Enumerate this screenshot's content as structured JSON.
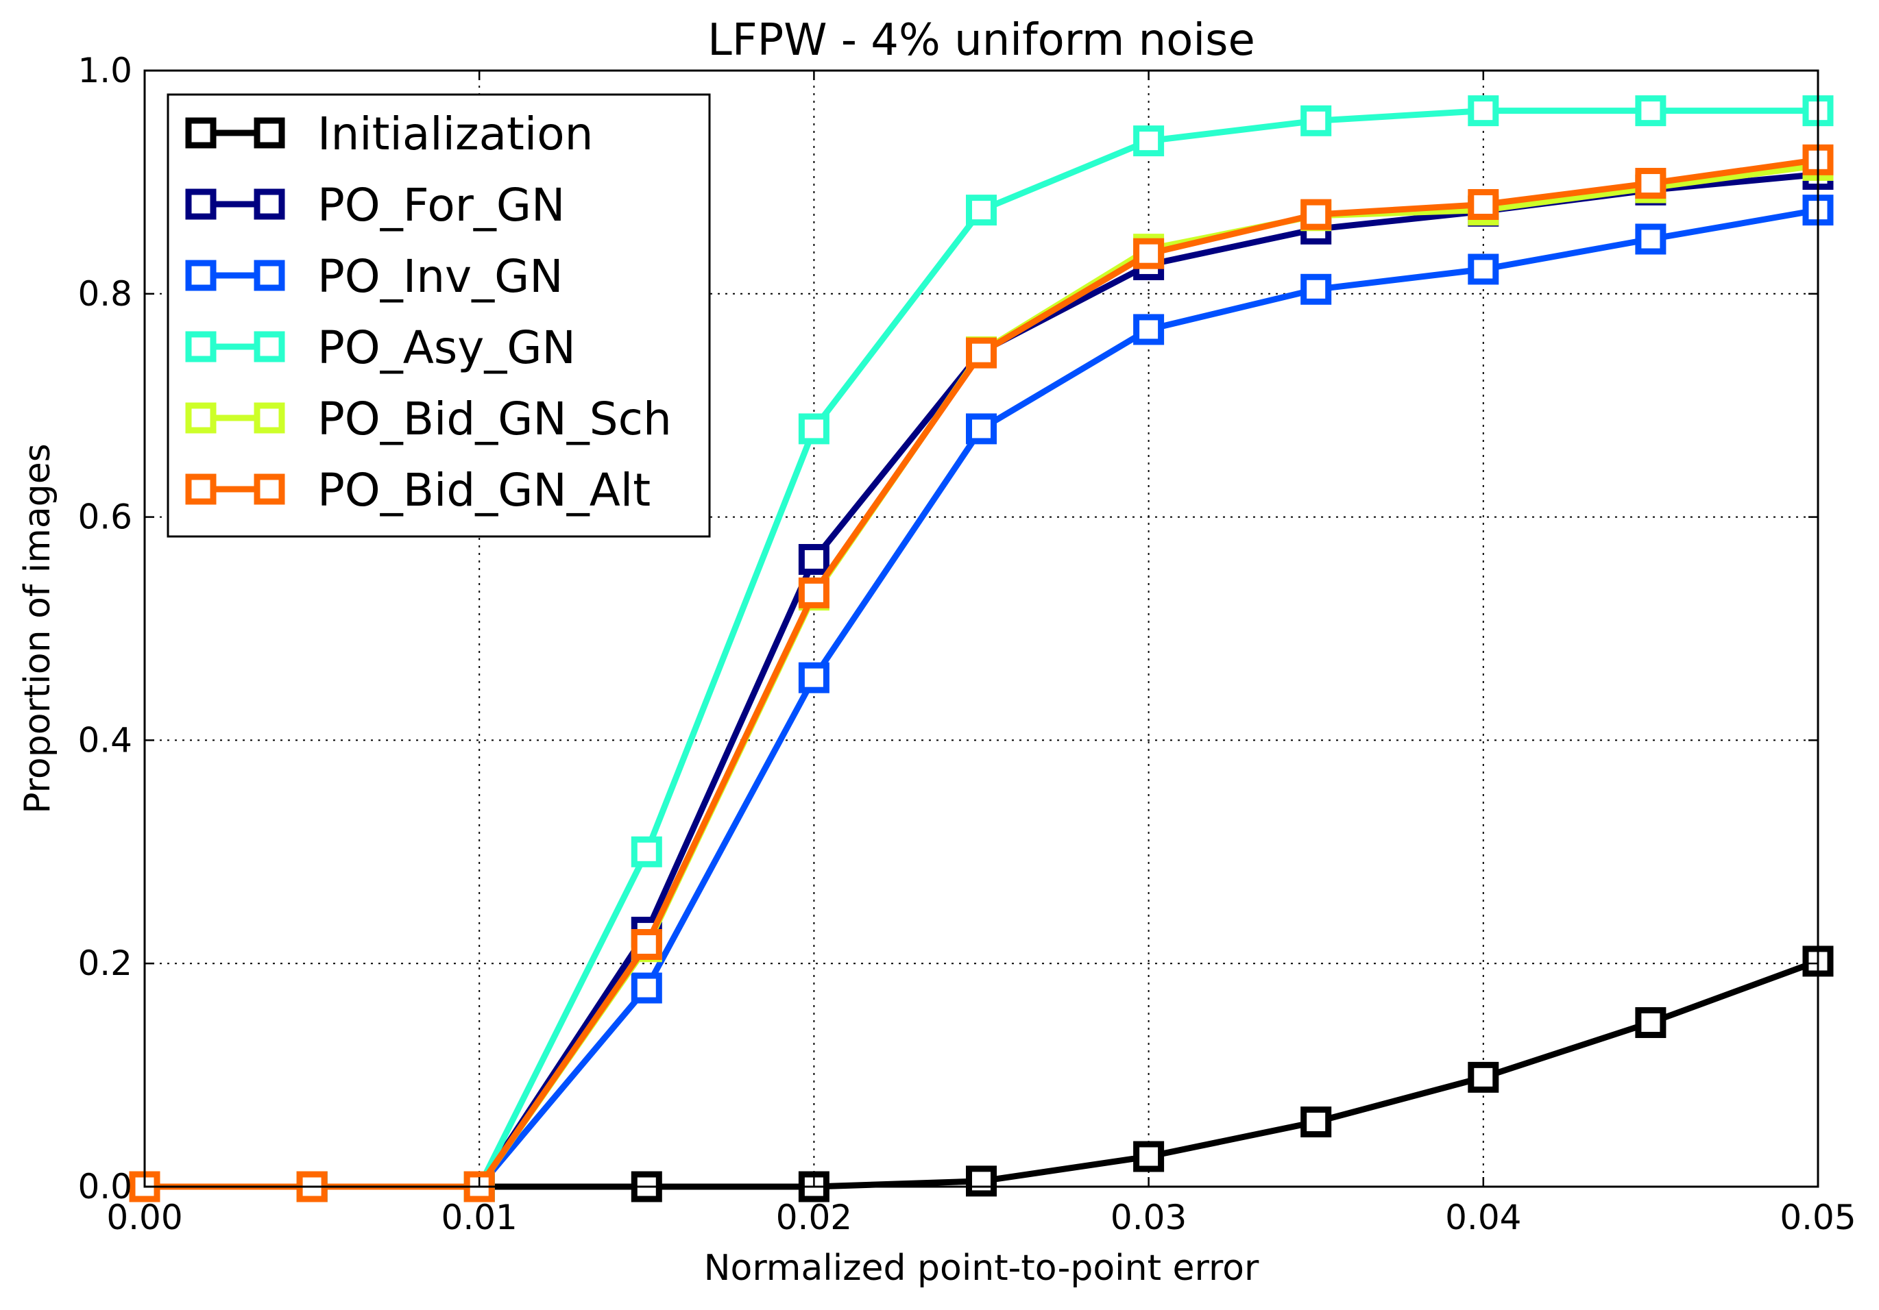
{
  "chart_data": {
    "type": "line",
    "title": "LFPW - 4% uniform noise",
    "xlabel": "Normalized point-to-point error",
    "ylabel": "Proportion of images",
    "xlim": [
      0,
      0.05
    ],
    "ylim": [
      0,
      1.0
    ],
    "x_ticks": [
      "0.00",
      "0.01",
      "0.02",
      "0.03",
      "0.04",
      "0.05"
    ],
    "y_ticks": [
      "0.0",
      "0.2",
      "0.4",
      "0.6",
      "0.8",
      "1.0"
    ],
    "grid": true,
    "legend_position": "top-left",
    "x": [
      0,
      0.005,
      0.01,
      0.015,
      0.02,
      0.025,
      0.03,
      0.035,
      0.04,
      0.045,
      0.05
    ],
    "series": [
      {
        "name": "Initialization",
        "color": "#000000",
        "values": [
          0,
          0,
          0,
          0,
          0,
          0.005,
          0.027,
          0.058,
          0.098,
          0.147,
          0.202
        ]
      },
      {
        "name": "PO_For_GN",
        "color": "#000080",
        "values": [
          0,
          0,
          0,
          0.228,
          0.562,
          0.748,
          0.826,
          0.858,
          0.874,
          0.893,
          0.907
        ]
      },
      {
        "name": "PO_Inv_GN",
        "color": "#0050ff",
        "values": [
          0,
          0,
          0,
          0.178,
          0.456,
          0.679,
          0.768,
          0.804,
          0.822,
          0.849,
          0.875
        ]
      },
      {
        "name": "PO_Asy_GN",
        "color": "#29ffcd",
        "values": [
          0,
          0,
          0,
          0.3,
          0.679,
          0.875,
          0.937,
          0.955,
          0.964,
          0.964,
          0.964
        ]
      },
      {
        "name": "PO_Bid_GN_Sch",
        "color": "#cdff29",
        "values": [
          0,
          0,
          0,
          0.215,
          0.53,
          0.748,
          0.84,
          0.87,
          0.875,
          0.895,
          0.915
        ]
      },
      {
        "name": "PO_Bid_GN_Alt",
        "color": "#ff6800",
        "values": [
          0,
          0,
          0,
          0.217,
          0.532,
          0.747,
          0.836,
          0.871,
          0.88,
          0.899,
          0.92
        ]
      }
    ]
  }
}
